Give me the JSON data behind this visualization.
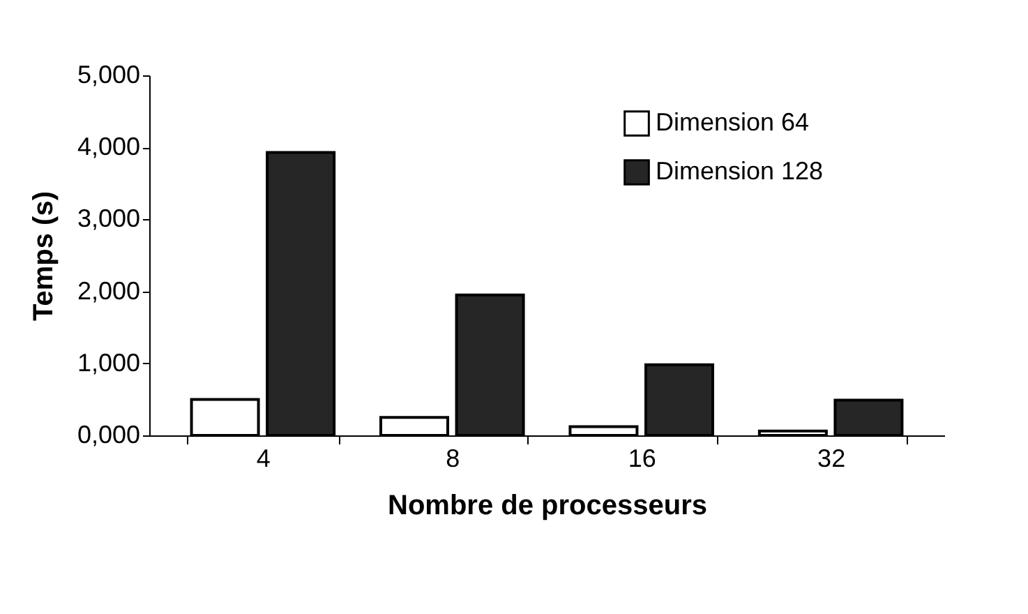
{
  "chart_data": {
    "type": "bar",
    "xlabel": "Nombre de processeurs",
    "ylabel": "Temps (s)",
    "categories": [
      "4",
      "8",
      "16",
      "32"
    ],
    "series": [
      {
        "name": "Dimension 64",
        "color": "#ffffff",
        "values": [
          500,
          250,
          120,
          60
        ]
      },
      {
        "name": "Dimension 128",
        "color": "#262626",
        "values": [
          3930,
          1950,
          980,
          490
        ]
      }
    ],
    "ylim": [
      0,
      5000
    ],
    "yticks": [
      {
        "value": 0,
        "label": "0,000"
      },
      {
        "value": 1000,
        "label": "1,000"
      },
      {
        "value": 2000,
        "label": "2,000"
      },
      {
        "value": 3000,
        "label": "3,000"
      },
      {
        "value": 4000,
        "label": "4,000"
      },
      {
        "value": 5000,
        "label": "5,000"
      }
    ],
    "grid": false,
    "legend": "top right"
  }
}
